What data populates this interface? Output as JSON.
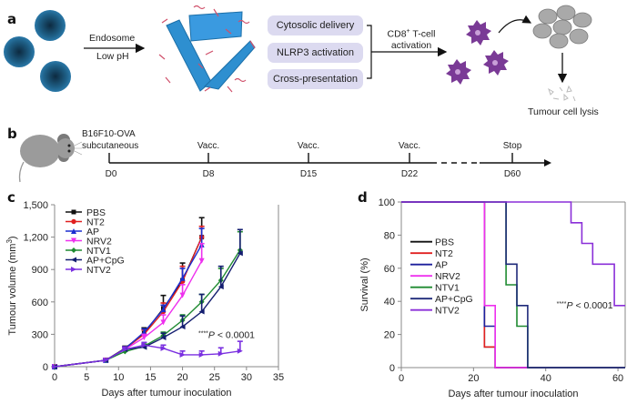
{
  "panel_a": {
    "letter": "a",
    "arrow1_top": "Endosome",
    "arrow1_bottom": "Low pH",
    "pills": [
      "Cytosolic delivery",
      "NLRP3 activation",
      "Cross-presentation"
    ],
    "arrow2_label_line1": "CD8",
    "arrow2_label_sup": "+",
    "arrow2_label_line1_rest": " T-cell",
    "arrow2_label_line2": "activation",
    "lysis_label": "Tumour cell lysis",
    "colors": {
      "nanoparticle": "#1e5f86",
      "sheet": "#2e8fd0",
      "peptide": "#d0506a",
      "dc": "#7a3a96",
      "tumour": "#a8a8a8",
      "pill": "#dcdaf0"
    }
  },
  "panel_b": {
    "letter": "b",
    "model_line1": "B16F10-OVA",
    "model_line2": "subcutaneous",
    "events": [
      {
        "top": "",
        "bottom": "D0"
      },
      {
        "top": "Vacc.",
        "bottom": "D8"
      },
      {
        "top": "Vacc.",
        "bottom": "D15"
      },
      {
        "top": "Vacc.",
        "bottom": "D22"
      },
      {
        "top": "Stop",
        "bottom": "D60"
      }
    ]
  },
  "chart_data": [
    {
      "panel": "c",
      "type": "line",
      "title": "",
      "xlabel": "Days after tumour inoculation",
      "ylabel": "Tumour volume (mm3)",
      "ylabel_main": "Tumour volume (mm",
      "ylabel_sup": "3",
      "ylabel_close": ")",
      "xlim": [
        0,
        35
      ],
      "ylim": [
        0,
        1500
      ],
      "xticks": [
        0,
        5,
        10,
        15,
        20,
        25,
        30,
        35
      ],
      "xtick_labels": [
        "0",
        "5",
        "10",
        "15",
        "20",
        "25",
        "30",
        "35"
      ],
      "yticks": [
        0,
        300,
        600,
        900,
        1200,
        1500
      ],
      "ytick_labels": [
        "0",
        "300",
        "600",
        "900",
        "1,200",
        "1,500"
      ],
      "legend_position": "top-left",
      "annotation": {
        "stars": "****",
        "p": "P",
        "rest": " < 0.0001"
      },
      "series": [
        {
          "name": "PBS",
          "color": "#111111",
          "marker": "square",
          "x": [
            0,
            8,
            11,
            14,
            17,
            20,
            23
          ],
          "y": [
            0,
            60,
            170,
            310,
            540,
            800,
            1200
          ],
          "err": [
            0,
            10,
            20,
            50,
            120,
            160,
            180
          ]
        },
        {
          "name": "NT2",
          "color": "#e02020",
          "marker": "circle",
          "x": [
            0,
            8,
            11,
            14,
            17,
            20,
            23
          ],
          "y": [
            0,
            60,
            165,
            300,
            510,
            790,
            1200
          ],
          "err": [
            0,
            10,
            20,
            40,
            80,
            140,
            100
          ]
        },
        {
          "name": "AP",
          "color": "#1c2fd0",
          "marker": "triangle-up",
          "x": [
            0,
            8,
            11,
            14,
            17,
            20,
            23
          ],
          "y": [
            0,
            60,
            165,
            320,
            530,
            820,
            1130
          ],
          "err": [
            0,
            10,
            20,
            30,
            40,
            90,
            150
          ]
        },
        {
          "name": "NRV2",
          "color": "#ee30ee",
          "marker": "triangle-down",
          "x": [
            0,
            8,
            11,
            14,
            17,
            20,
            23
          ],
          "y": [
            0,
            60,
            160,
            270,
            410,
            660,
            980
          ],
          "err": [
            0,
            10,
            20,
            30,
            70,
            100,
            160
          ]
        },
        {
          "name": "NTV1",
          "color": "#1e8a30",
          "marker": "diamond",
          "x": [
            0,
            8,
            11,
            14,
            17,
            20,
            23,
            26,
            29
          ],
          "y": [
            0,
            60,
            140,
            190,
            290,
            430,
            600,
            800,
            1080
          ],
          "err": [
            0,
            10,
            20,
            20,
            30,
            50,
            70,
            110,
            170
          ]
        },
        {
          "name": "AP+CpG",
          "color": "#141e70",
          "marker": "triangle-left",
          "x": [
            0,
            8,
            11,
            14,
            17,
            20,
            23,
            26,
            29
          ],
          "y": [
            0,
            60,
            160,
            180,
            270,
            370,
            510,
            740,
            1050
          ],
          "err": [
            0,
            10,
            20,
            20,
            40,
            100,
            160,
            190,
            220
          ]
        },
        {
          "name": "NTV2",
          "color": "#7a2fe0",
          "marker": "triangle-right",
          "x": [
            0,
            8,
            11,
            14,
            17,
            20,
            23,
            26,
            29
          ],
          "y": [
            0,
            60,
            160,
            200,
            170,
            110,
            110,
            120,
            145
          ],
          "err": [
            0,
            10,
            20,
            25,
            30,
            35,
            35,
            55,
            90
          ]
        }
      ]
    },
    {
      "panel": "d",
      "type": "line",
      "step": true,
      "title": "",
      "xlabel": "Days after tumour inoculation",
      "ylabel": "Survival (%)",
      "xlim": [
        0,
        62
      ],
      "ylim": [
        0,
        100
      ],
      "xticks": [
        0,
        20,
        40,
        60
      ],
      "xtick_labels": [
        "0",
        "20",
        "40",
        "60"
      ],
      "yticks": [
        0,
        20,
        40,
        60,
        80,
        100
      ],
      "ytick_labels": [
        "0",
        "20",
        "40",
        "60",
        "80",
        "100"
      ],
      "legend_position": "center-left",
      "annotation": {
        "stars": "****",
        "p": "P",
        "rest": " < 0.0001"
      },
      "series": [
        {
          "name": "PBS",
          "color": "#111111",
          "x": [
            0,
            23,
            26,
            62
          ],
          "y": [
            100,
            12.5,
            0,
            0
          ]
        },
        {
          "name": "NT2",
          "color": "#e02020",
          "x": [
            0,
            23,
            26,
            62
          ],
          "y": [
            100,
            12.5,
            0,
            0
          ]
        },
        {
          "name": "AP",
          "color": "#1c1f9c",
          "x": [
            0,
            23,
            26,
            62
          ],
          "y": [
            100,
            25,
            0,
            0
          ]
        },
        {
          "name": "NRV2",
          "color": "#ee30ee",
          "x": [
            0,
            23,
            26,
            62
          ],
          "y": [
            100,
            37.5,
            0,
            0
          ]
        },
        {
          "name": "NTV1",
          "color": "#1e8a30",
          "x": [
            0,
            29,
            32,
            35,
            62
          ],
          "y": [
            100,
            50,
            25,
            0,
            0
          ]
        },
        {
          "name": "AP+CpG",
          "color": "#1f2a7a",
          "x": [
            0,
            29,
            32,
            35,
            62
          ],
          "y": [
            100,
            62.5,
            37.5,
            0,
            0
          ]
        },
        {
          "name": "NTV2",
          "color": "#8a2fd8",
          "x": [
            0,
            47,
            50,
            53,
            59,
            62
          ],
          "y": [
            100,
            87.5,
            75,
            62.5,
            37.5,
            37.5
          ]
        }
      ]
    }
  ]
}
